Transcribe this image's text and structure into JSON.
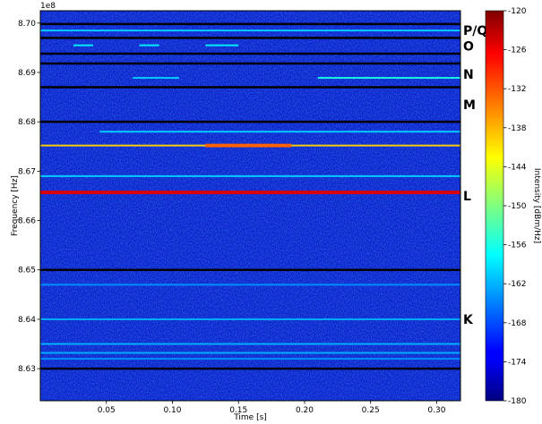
{
  "chart_data": {
    "type": "heatmap",
    "xlabel": "Time [s]",
    "ylabel": "Frequency [Hz]",
    "offset_label": "1e8",
    "xlim": [
      0.0,
      0.318
    ],
    "ylim": [
      8.6235,
      8.7025
    ],
    "x_ticks": [
      {
        "value": 0.05,
        "label": "0.05"
      },
      {
        "value": 0.1,
        "label": "0.10"
      },
      {
        "value": 0.15,
        "label": "0.15"
      },
      {
        "value": 0.2,
        "label": "0.20"
      },
      {
        "value": 0.25,
        "label": "0.25"
      },
      {
        "value": 0.3,
        "label": "0.30"
      }
    ],
    "y_ticks": [
      {
        "value": 8.63,
        "label": "8.63"
      },
      {
        "value": 8.64,
        "label": "8.64"
      },
      {
        "value": 8.65,
        "label": "8.65"
      },
      {
        "value": 8.66,
        "label": "8.66"
      },
      {
        "value": 8.67,
        "label": "8.67"
      },
      {
        "value": 8.68,
        "label": "8.68"
      },
      {
        "value": 8.69,
        "label": "8.69"
      },
      {
        "value": 8.7,
        "label": "8.70"
      }
    ],
    "band_boundaries": [
      8.63,
      8.65,
      8.68,
      8.687,
      8.6918,
      8.6938,
      8.697,
      8.6998
    ],
    "band_labels": [
      {
        "label": "P/Q",
        "freq": 8.6985
      },
      {
        "label": "O",
        "freq": 8.6953
      },
      {
        "label": "N",
        "freq": 8.6896
      },
      {
        "label": "M",
        "freq": 8.6835
      },
      {
        "label": "L",
        "freq": 8.665
      },
      {
        "label": "K",
        "freq": 8.64
      }
    ],
    "signals": [
      {
        "freq": 8.6657,
        "level": -126,
        "t_start": 0.0,
        "t_end": 0.318
      },
      {
        "freq": 8.6752,
        "level": -140,
        "t_start": 0.0,
        "t_end": 0.318
      },
      {
        "freq": 8.6752,
        "level": -133,
        "t_start": 0.125,
        "t_end": 0.19
      },
      {
        "freq": 8.669,
        "level": -160,
        "t_start": 0.0,
        "t_end": 0.318
      },
      {
        "freq": 8.678,
        "level": -160,
        "t_start": 0.045,
        "t_end": 0.318
      },
      {
        "freq": 8.647,
        "level": -164,
        "t_start": 0.0,
        "t_end": 0.318
      },
      {
        "freq": 8.64,
        "level": -162,
        "t_start": 0.0,
        "t_end": 0.318
      },
      {
        "freq": 8.635,
        "level": -162,
        "t_start": 0.0,
        "t_end": 0.318
      },
      {
        "freq": 8.6332,
        "level": -162,
        "t_start": 0.0,
        "t_end": 0.318
      },
      {
        "freq": 8.632,
        "level": -164,
        "t_start": 0.0,
        "t_end": 0.318
      },
      {
        "freq": 8.6985,
        "level": -160,
        "t_start": 0.0,
        "t_end": 0.318
      },
      {
        "freq": 8.6889,
        "level": -156,
        "t_start": 0.21,
        "t_end": 0.318
      },
      {
        "freq": 8.6955,
        "level": -158,
        "t_start": 0.025,
        "t_end": 0.04
      },
      {
        "freq": 8.6955,
        "level": -158,
        "t_start": 0.075,
        "t_end": 0.09
      },
      {
        "freq": 8.6955,
        "level": -158,
        "t_start": 0.125,
        "t_end": 0.15
      },
      {
        "freq": 8.6889,
        "level": -160,
        "t_start": 0.07,
        "t_end": 0.105
      }
    ],
    "colorbar": {
      "label": "Intensity [dBm/Hz]",
      "min": -180,
      "max": -120,
      "ticks": [
        -120,
        -126,
        -132,
        -138,
        -144,
        -150,
        -156,
        -162,
        -168,
        -174,
        -180
      ],
      "colormap": "jet"
    }
  }
}
